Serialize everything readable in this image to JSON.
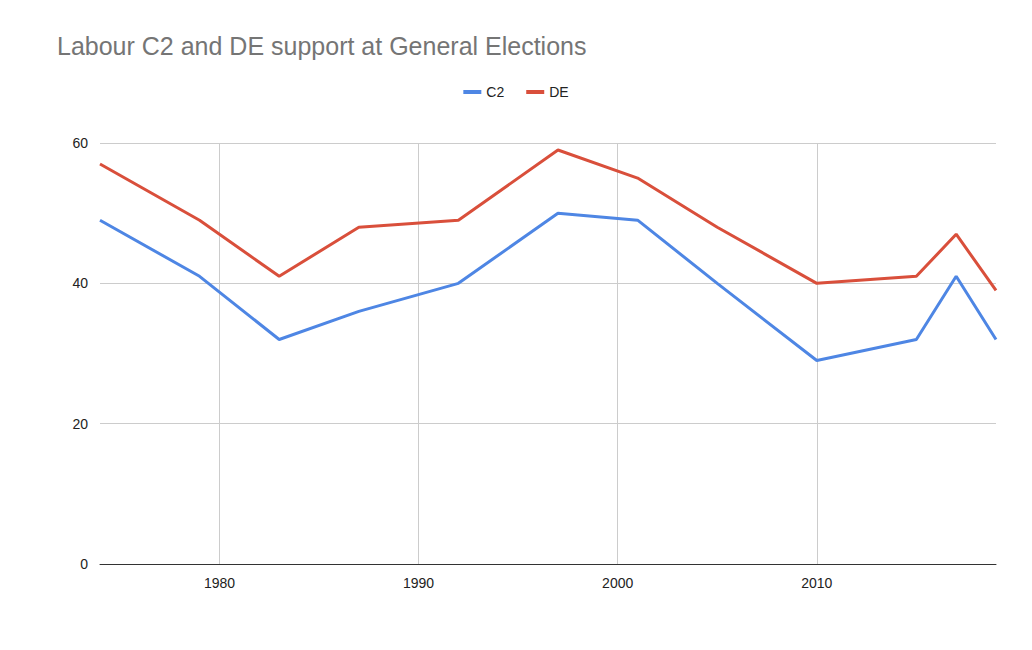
{
  "chart_data": {
    "type": "line",
    "title": "Labour C2 and DE support at General Elections",
    "x": [
      1974,
      1979,
      1983,
      1987,
      1992,
      1997,
      2001,
      2005,
      2010,
      2015,
      2017,
      2019
    ],
    "series": [
      {
        "name": "C2",
        "color": "#4e86e4",
        "values": [
          49,
          41,
          32,
          36,
          40,
          50,
          49,
          40,
          29,
          32,
          41,
          32
        ]
      },
      {
        "name": "DE",
        "color": "#d94f3b",
        "values": [
          57,
          49,
          41,
          48,
          49,
          59,
          55,
          48,
          40,
          41,
          47,
          39
        ]
      }
    ],
    "xlim": [
      1974,
      2019
    ],
    "xticks": [
      1980,
      1990,
      2000,
      2010
    ],
    "ylim": [
      0,
      60
    ],
    "yticks": [
      0,
      20,
      40,
      60
    ],
    "grid": true,
    "legend": "top"
  }
}
